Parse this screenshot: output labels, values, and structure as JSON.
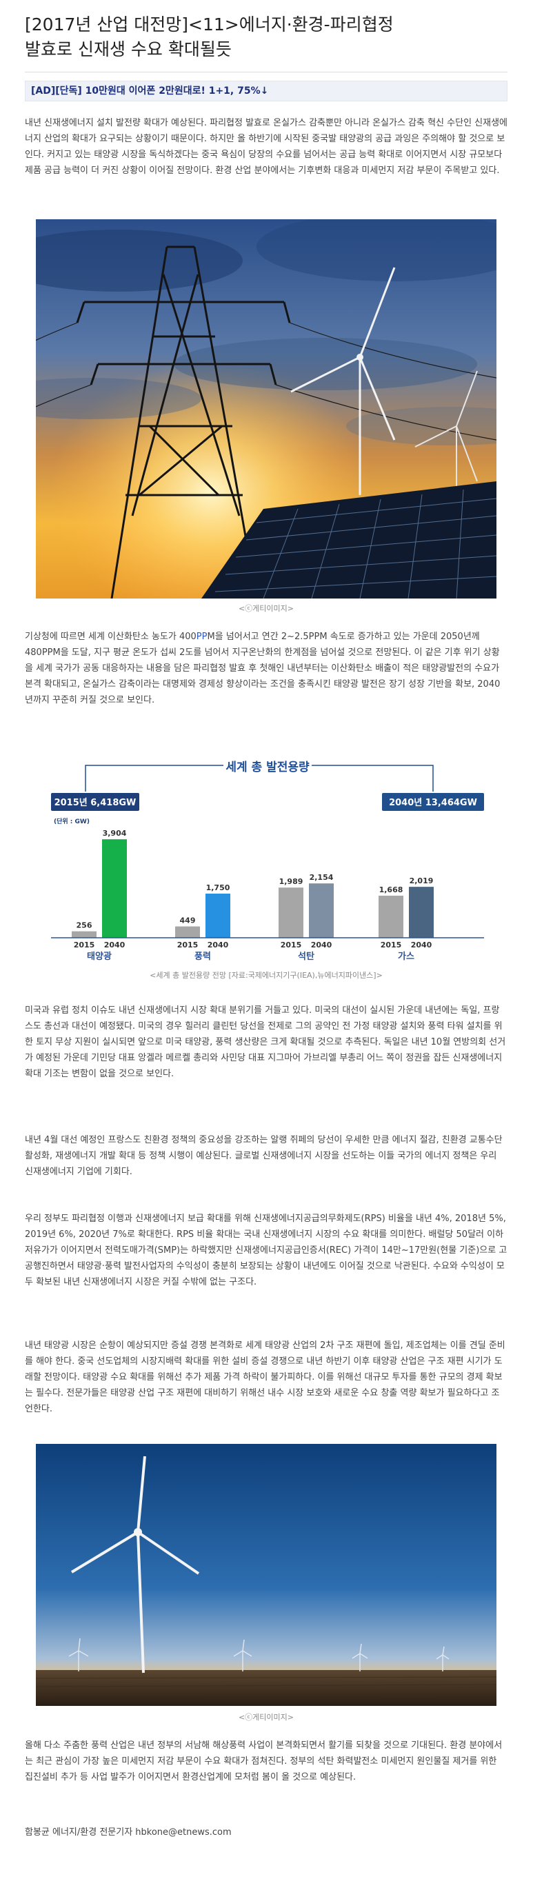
{
  "article": {
    "title_line1": "[2017년 산업 대전망]<11>에너지·환경-파리협정",
    "title_line2": "발효로 신재생 수요 확대될듯",
    "ad_text": "[AD][단독] 10만원대 이어폰 2만원대로! 1+1, 75%↓",
    "para1": "내년 신재생에너지 설치 발전량 확대가 예상된다. 파리협정 발효로 온실가스 감축뿐만 아니라 온실가스 감축 혁신 수단인 신재생에너지 산업의 확대가 요구되는 상황이기 때문이다. 하지만 올 하반기에 시작된 중국발 태양광의 공급 과잉은 주의해야 할 것으로 보인다. 커지고 있는 태양광 시장을 독식하겠다는 중국 욕심이 당장의 수요를 넘어서는 공급 능력 확대로 이어지면서 시장 규모보다 제품 공급 능력이 더 커진 상황이 이어질 전망이다. 환경 산업 분야에서는 기후변화 대응과 미세먼지 저감 부문이 주목받고 있다.",
    "photo1_caption": "<ⓒ게티이미지>",
    "para2_pre": "기상청에 따르면 세계 이산화탄소 농도가 400",
    "para2_link": "PP",
    "para2_post": "M을 넘어서고 연간 2~2.5PPM 속도로 증가하고 있는 가운데 2050년께 480PPM을 도달, 지구 평균 온도가 섭씨 2도를 넘어서 지구온난화의 한계점을 넘어설 것으로 전망된다. 이 같은 기후 위기 상황을 세계 국가가 공동 대응하자는 내용을 담은 파리협정 발효 후 첫해인 내년부터는 이산화탄소 배출이 적은 태양광발전의 수요가 본격 확대되고, 온실가스 감축이라는 대명제와 경제성 향상이라는 조건을 충족시킨 태양광 발전은 장기 성장 기반을 확보, 2040년까지 꾸준히 커질 것으로 보인다.",
    "chart_caption": "<세계 총 발전용량 전망 [자료:국제에너지기구(IEA),뉴에너지파이낸스]>",
    "para3": "미국과 유럽 정치 이슈도 내년 신재생에너지 시장 확대 분위기를 거들고 있다. 미국의 대선이 실시된 가운데 내년에는 독일, 프랑스도 총선과 대선이 예정됐다. 미국의 경우 힐러리 클린턴 당선을 전제로 그의 공약인 전 가정 태양광 설치와 풍력 타워 설치를 위한 토지 무상 지원이 실시되면 앞으로 미국 태양광, 풍력 생산량은 크게 확대될 것으로 추측된다. 독일은 내년 10월 연방의회 선거가 예정된 가운데 기민당 대표 앙겔라 메르켈 총리와 사민당 대표 지그마어 가브리엘 부총리 어느 쪽이 정권을 잡든 신재생에너지 확대 기조는 변함이 없을 것으로 보인다.",
    "para4": "내년 4월 대선 예정인 프랑스도 친환경 정책의 중요성을 강조하는 알랭 쥐페의 당선이 우세한 만큼 에너지 절감, 친환경 교통수단 활성화, 재생에너지 개발 확대 등 정책 시행이 예상된다. 글로벌 신재생에너지 시장을 선도하는 이들 국가의 에너지 정책은 우리 신재생에너지 기업에 기회다.",
    "para5": "우리 정부도 파리협정 이행과 신재생에너지 보급 확대를 위해 신재생에너지공급의무화제도(RPS) 비율을 내년 4%, 2018년 5%, 2019년 6%, 2020년 7%로 확대한다. RPS 비율 확대는 국내 신재생에너지 시장의 수요 확대를 의미한다. 배럴당 50달러 이하 저유가가 이어지면서 전력도매가격(SMP)는 하락했지만 신재생에너지공급인증서(REC) 가격이 14만~17만원(현물 기준)으로 고공행진하면서 태양광·풍력 발전사업자의 수익성이 충분히 보장되는 상황이 내년에도 이어질 것으로 낙관된다. 수요와 수익성이 모두 확보된 내년 신재생에너지 시장은 커질 수밖에 없는 구조다.",
    "para6": "내년 태양광 시장은 순항이 예상되지만 증설 경쟁 본격화로 세계 태양광 산업의 2차 구조 재편에 돌입, 제조업체는 이를 견딜 준비를 해야 한다. 중국 선도업체의 시장지배력 확대를 위한 설비 증설 경쟁으로 내년 하반기 이후 태양광 산업은 구조 재편 시기가 도래할 전망이다. 태양광 수요 확대를 위해선 추가 제품 가격 하락이 불가피하다. 이를 위해선 대규모 투자를 통한 규모의 경제 확보는 필수다. 전문가들은 태양광 산업 구조 재편에 대비하기 위해선 내수 시장 보호와 새로운 수요 창출 역량 확보가 필요하다고 조언한다.",
    "photo2_caption": "<ⓒ게티이미지>",
    "para7": "올해 다소 주춤한 풍력 산업은 내년 정부의 서남해 해상풍력 사업이 본격화되면서 활기를 되찾을 것으로 기대된다. 환경 분야에서는 최근 관심이 가장 높은 미세먼지 저감 부문이 수요 확대가 점쳐진다. 정부의 석탄 화력발전소 미세먼지 원인물질 제거를 위한 집진설비 추가 등 사업 발주가 이어지면서 환경산업계에 모처럼 봄이 올 것으로 예상된다.",
    "byline": "함봉균 에너지/환경 전문기자 hbkone@etnews.com"
  },
  "chart_data": {
    "type": "bar",
    "title": "세계 총 발전용량",
    "unit_label": "(단위 : GW)",
    "total_2015_label": "2015년 6,418GW",
    "total_2040_label": "2040년 13,464GW",
    "categories": [
      "태양광",
      "풍력",
      "석탄",
      "가스"
    ],
    "x_sub_labels": [
      "2015",
      "2040"
    ],
    "series": [
      {
        "name": "2015",
        "values": [
          256,
          449,
          1989,
          1668
        ]
      },
      {
        "name": "2040",
        "values": [
          3904,
          1750,
          2154,
          2019
        ]
      }
    ],
    "value_labels": [
      [
        "256",
        "3,904"
      ],
      [
        "449",
        "1,750"
      ],
      [
        "1,989",
        "2,154"
      ],
      [
        "1,668",
        "2,019"
      ]
    ],
    "ylim": [
      0,
      4100
    ],
    "colors": {
      "bar_2015": "#a6a6a6",
      "bar_2040": [
        "#15b04a",
        "#2591e0",
        "#7f8fa3",
        "#496581"
      ],
      "category_label": "#2f5597",
      "title": "#1f4e96",
      "badge_2015": "#1f3f7a",
      "badge_2040": "#1f4f8c"
    }
  }
}
